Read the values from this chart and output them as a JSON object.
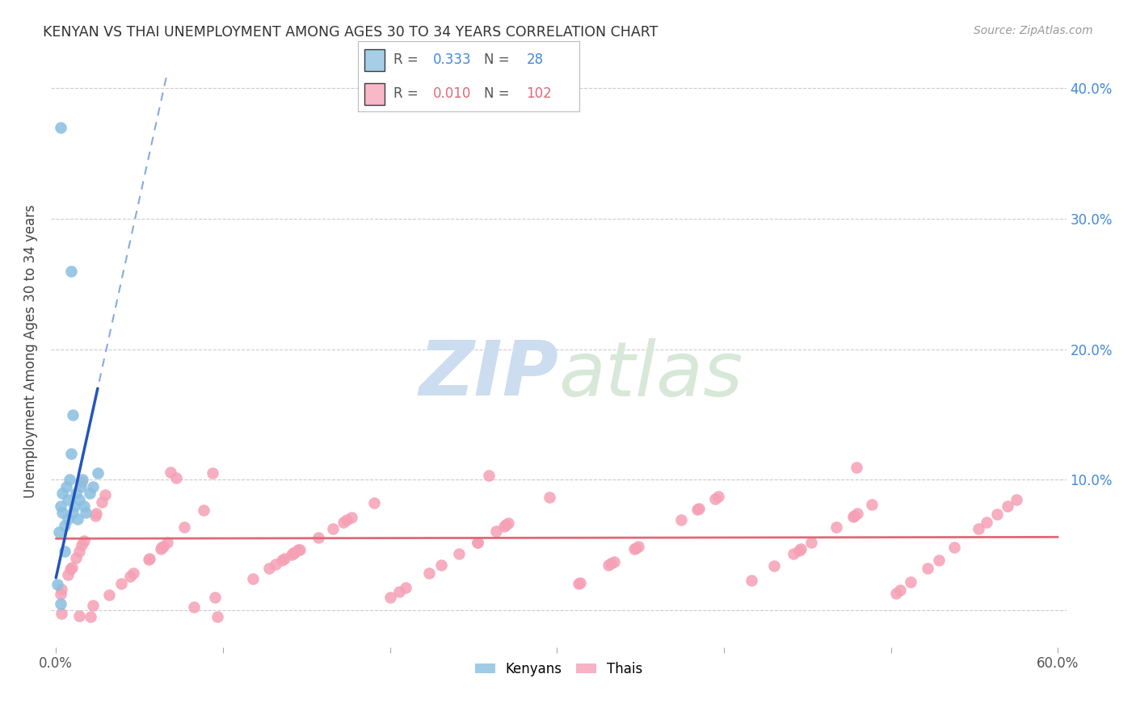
{
  "title": "KENYAN VS THAI UNEMPLOYMENT AMONG AGES 30 TO 34 YEARS CORRELATION CHART",
  "source": "Source: ZipAtlas.com",
  "ylabel": "Unemployment Among Ages 30 to 34 years",
  "kenyan_color": "#89bfe0",
  "thai_color": "#f5a0b5",
  "kenyan_line_color": "#2255bb",
  "thai_line_color": "#e06878",
  "kenyan_R": 0.333,
  "kenyan_N": 28,
  "thai_R": 0.01,
  "thai_N": 102,
  "background_color": "#ffffff",
  "grid_color": "#cccccc",
  "right_tick_color": "#4488dd",
  "title_color": "#333333",
  "source_color": "#999999",
  "axis_label_color": "#555555",
  "xlim_min": -0.003,
  "xlim_max": 0.605,
  "ylim_min": -0.028,
  "ylim_max": 0.425
}
